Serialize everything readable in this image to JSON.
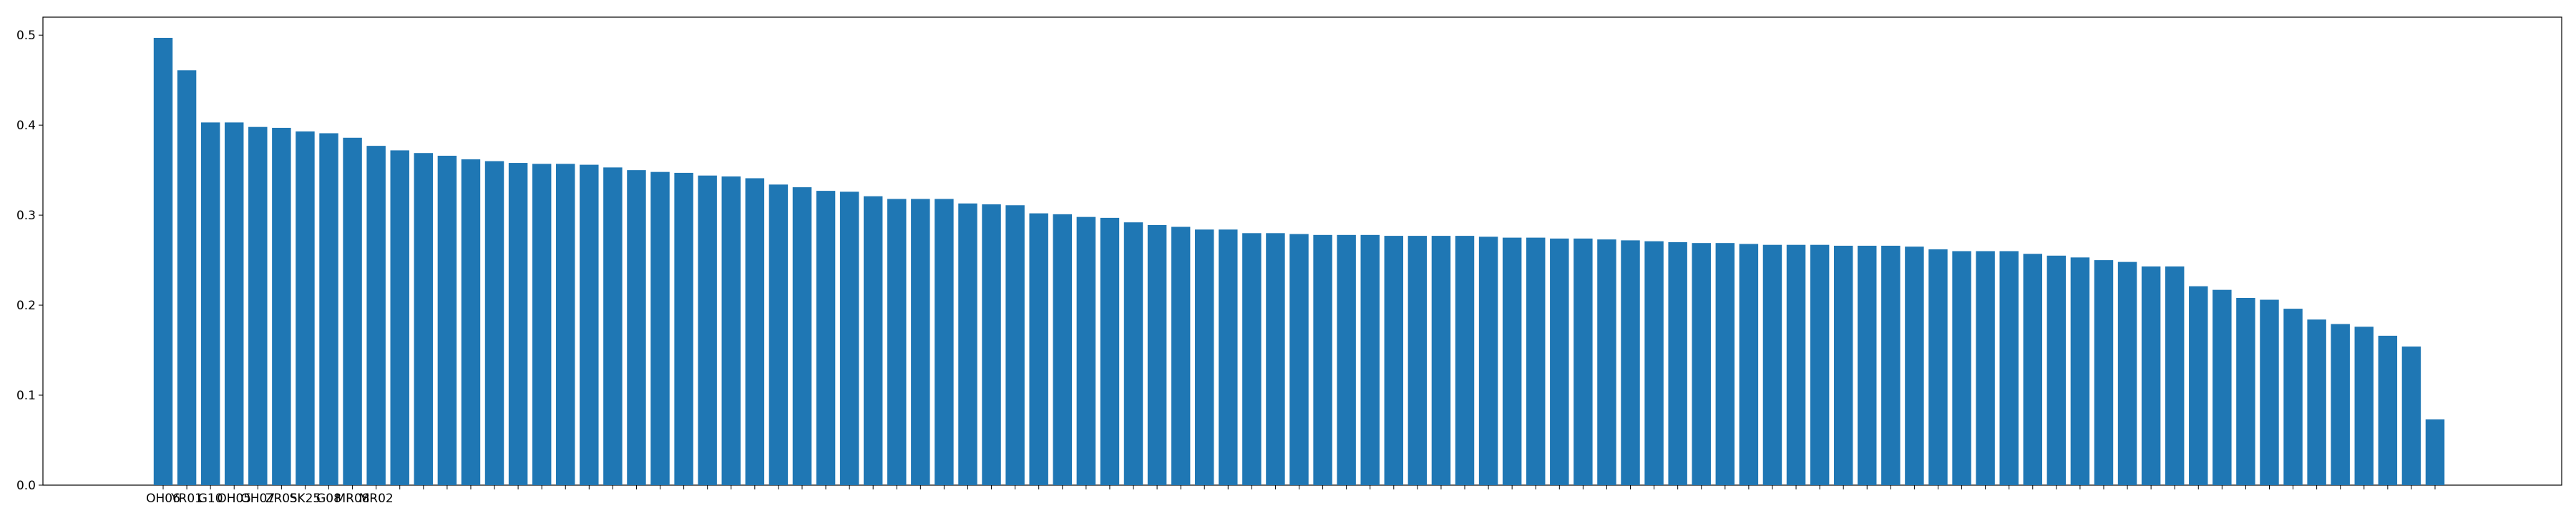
{
  "chart_data": {
    "type": "bar",
    "title": "",
    "xlabel": "",
    "ylabel": "",
    "ylim": [
      0,
      0.52
    ],
    "yticks": [
      "0.0",
      "0.1",
      "0.2",
      "0.3",
      "0.4",
      "0.5"
    ],
    "grid": false,
    "legend": "none",
    "bar_color": "#1f77b4",
    "visible_category_labels": [
      "OH06",
      "YR01",
      "G10",
      "OH05",
      "OH07",
      "ZR05",
      "SK25",
      "G08",
      "MR08",
      "MR02"
    ],
    "values": [
      0.497,
      0.461,
      0.403,
      0.403,
      0.398,
      0.397,
      0.393,
      0.391,
      0.386,
      0.377,
      0.372,
      0.369,
      0.366,
      0.362,
      0.36,
      0.358,
      0.357,
      0.357,
      0.356,
      0.353,
      0.35,
      0.348,
      0.347,
      0.344,
      0.343,
      0.341,
      0.334,
      0.331,
      0.327,
      0.326,
      0.321,
      0.318,
      0.318,
      0.318,
      0.313,
      0.312,
      0.311,
      0.302,
      0.301,
      0.298,
      0.297,
      0.292,
      0.289,
      0.287,
      0.284,
      0.284,
      0.28,
      0.28,
      0.279,
      0.278,
      0.278,
      0.278,
      0.277,
      0.277,
      0.277,
      0.277,
      0.276,
      0.275,
      0.275,
      0.274,
      0.274,
      0.273,
      0.272,
      0.271,
      0.27,
      0.269,
      0.269,
      0.268,
      0.267,
      0.267,
      0.267,
      0.266,
      0.266,
      0.266,
      0.265,
      0.262,
      0.26,
      0.26,
      0.26,
      0.257,
      0.255,
      0.253,
      0.25,
      0.248,
      0.243,
      0.243,
      0.221,
      0.217,
      0.208,
      0.206,
      0.196,
      0.184,
      0.179,
      0.176,
      0.166,
      0.154,
      0.073
    ]
  }
}
